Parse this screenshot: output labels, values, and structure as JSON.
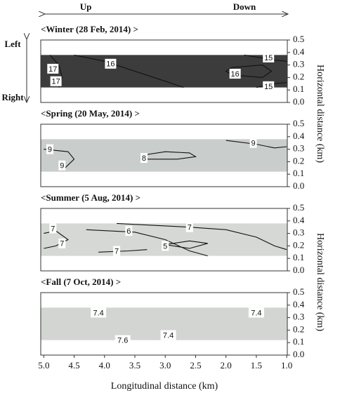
{
  "direction_labels": {
    "up": "Up",
    "down": "Down",
    "left": "Left",
    "right": "Right"
  },
  "xlabel": "Longitudinal distance (km)",
  "ylabels": [
    "Horizontal distance (km)",
    "Horizontal distance (km)"
  ],
  "chart_data": [
    {
      "type": "contour",
      "title": "<Winter (28 Feb, 2014) >",
      "xlim": [
        5.05,
        0.99
      ],
      "ylim": [
        0,
        0.5
      ],
      "yticks": [
        {
          "value": 0,
          "label": "0.0"
        },
        0.1,
        0.2,
        0.3,
        0.4,
        0.5
      ],
      "band": {
        "y": [
          0.12,
          0.38
        ],
        "color": "#3c3c3c"
      },
      "lines": [
        {
          "x": [
            4.5,
            4.0,
            3.5,
            3.0,
            2.7
          ],
          "y": [
            0.38,
            0.33,
            0.25,
            0.17,
            0.12
          ]
        },
        {
          "x": [
            4.9,
            4.75,
            4.7,
            4.75
          ],
          "y": [
            0.38,
            0.3,
            0.2,
            0.12
          ]
        },
        {
          "x": [
            1.9,
            1.4,
            1.25,
            1.4,
            1.9,
            2.0,
            1.9
          ],
          "y": [
            0.28,
            0.3,
            0.25,
            0.2,
            0.22,
            0.25,
            0.28
          ]
        },
        {
          "x": [
            1.7,
            1.2,
            1.0
          ],
          "y": [
            0.38,
            0.34,
            0.33
          ]
        },
        {
          "x": [
            1.0,
            1.2,
            1.5
          ],
          "y": [
            0.16,
            0.15,
            0.12
          ]
        }
      ],
      "labels": [
        {
          "level": 16,
          "x": 3.9,
          "y": 0.31
        },
        {
          "level": 17,
          "x": 4.85,
          "y": 0.27
        },
        {
          "level": 17,
          "x": 4.8,
          "y": 0.17
        },
        {
          "level": 16,
          "x": 1.85,
          "y": 0.23
        },
        {
          "level": 15,
          "x": 1.3,
          "y": 0.36
        },
        {
          "level": 15,
          "x": 1.3,
          "y": 0.13
        }
      ]
    },
    {
      "type": "contour",
      "title": "<Spring (20 May, 2014) >",
      "xlim": [
        5.05,
        0.99
      ],
      "ylim": [
        0,
        0.5
      ],
      "yticks": [
        {
          "value": 0,
          "label": "0.0"
        },
        0.1,
        0.2,
        0.3,
        0.4,
        0.5
      ],
      "band": {
        "y": [
          0.12,
          0.38
        ],
        "color": "#c9cdcb"
      },
      "lines": [
        {
          "x": [
            5.0,
            4.6,
            4.5,
            4.65
          ],
          "y": [
            0.3,
            0.28,
            0.22,
            0.15
          ]
        },
        {
          "x": [
            3.4,
            3.0,
            2.6,
            2.5,
            2.8,
            3.3,
            3.4
          ],
          "y": [
            0.25,
            0.28,
            0.27,
            0.24,
            0.22,
            0.22,
            0.25
          ]
        },
        {
          "x": [
            2.0,
            1.5,
            1.2,
            1.0
          ],
          "y": [
            0.37,
            0.34,
            0.31,
            0.32
          ]
        }
      ],
      "labels": [
        {
          "level": 9,
          "x": 4.9,
          "y": 0.3
        },
        {
          "level": 9,
          "x": 4.7,
          "y": 0.17
        },
        {
          "level": 8,
          "x": 3.35,
          "y": 0.23
        },
        {
          "level": 9,
          "x": 1.55,
          "y": 0.35
        }
      ]
    },
    {
      "type": "contour",
      "title": "<Summer (5 Aug, 2014) >",
      "xlim": [
        5.05,
        0.99
      ],
      "ylim": [
        0,
        0.5
      ],
      "yticks": [
        {
          "value": 0,
          "label": "0.0"
        },
        0.1,
        0.2,
        0.3,
        0.4,
        0.5
      ],
      "band": {
        "y": [
          0.12,
          0.38
        ],
        "color": "#d6d8d6"
      },
      "lines": [
        {
          "x": [
            5.0,
            4.8,
            4.6,
            4.8,
            5.0
          ],
          "y": [
            0.3,
            0.32,
            0.25,
            0.2,
            0.18
          ]
        },
        {
          "x": [
            3.8,
            2.6,
            2.0,
            1.5,
            1.2,
            1.0
          ],
          "y": [
            0.38,
            0.35,
            0.33,
            0.27,
            0.2,
            0.17
          ]
        },
        {
          "x": [
            4.3,
            3.5,
            3.0,
            2.6,
            2.3
          ],
          "y": [
            0.33,
            0.31,
            0.25,
            0.16,
            0.12
          ]
        },
        {
          "x": [
            3.0,
            2.6,
            2.3,
            2.6,
            3.0
          ],
          "y": [
            0.21,
            0.24,
            0.22,
            0.18,
            0.21
          ]
        },
        {
          "x": [
            4.1,
            3.6,
            3.3
          ],
          "y": [
            0.15,
            0.16,
            0.17
          ]
        }
      ],
      "labels": [
        {
          "level": 7,
          "x": 4.85,
          "y": 0.34
        },
        {
          "level": 7,
          "x": 4.7,
          "y": 0.22
        },
        {
          "level": 6,
          "x": 3.6,
          "y": 0.32
        },
        {
          "level": 7,
          "x": 2.6,
          "y": 0.35
        },
        {
          "level": 5,
          "x": 3.0,
          "y": 0.2
        },
        {
          "level": 7,
          "x": 3.8,
          "y": 0.16
        }
      ]
    },
    {
      "type": "contour",
      "title": "<Fall (7 Oct, 2014) >",
      "xlim": [
        5.05,
        0.99
      ],
      "ylim": [
        0,
        0.5
      ],
      "xticks": [
        {
          "value": 5,
          "label": "5.0"
        },
        4.5,
        {
          "value": 4,
          "label": "4.0"
        },
        3.5,
        {
          "value": 3,
          "label": "3.0"
        },
        2.5,
        {
          "value": 2,
          "label": "2.0"
        },
        1.5,
        {
          "value": 1,
          "label": "1.0"
        }
      ],
      "yticks": [
        {
          "value": 0,
          "label": "0.0"
        },
        0.1,
        0.2,
        0.3,
        0.4,
        0.5
      ],
      "band": {
        "y": [
          0.12,
          0.38
        ],
        "color": "#d3d5d3"
      },
      "lines": [],
      "labels": [
        {
          "level": 7.4,
          "x": 4.1,
          "y": 0.34
        },
        {
          "level": 7.4,
          "x": 1.5,
          "y": 0.34
        },
        {
          "level": 7.4,
          "x": 2.95,
          "y": 0.16
        },
        {
          "level": 7.6,
          "x": 3.7,
          "y": 0.12
        }
      ]
    }
  ]
}
